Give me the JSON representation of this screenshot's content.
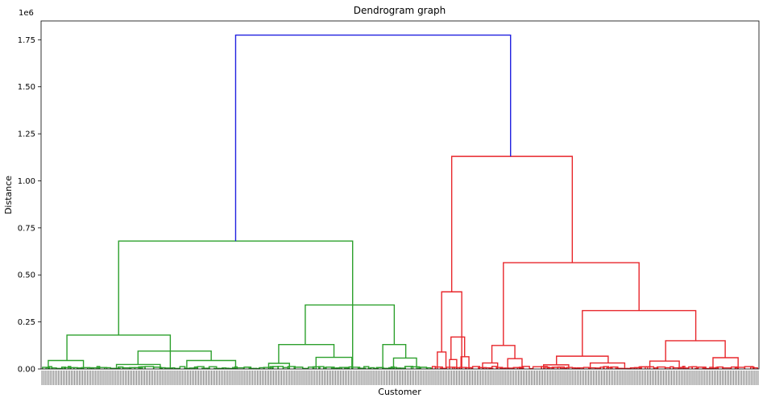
{
  "chart_data": {
    "type": "dendrogram",
    "title": "Dendrogram graph",
    "xlabel": "Customer",
    "ylabel": "Distance",
    "y_offset_text": "1e6",
    "y_scale_multiplier": 1000000,
    "ylim": [
      0,
      1.85
    ],
    "y_ticks": [
      0.0,
      0.25,
      0.5,
      0.75,
      1.0,
      1.25,
      1.5,
      1.75
    ],
    "y_tick_labels": [
      "0.00",
      "0.25",
      "0.50",
      "0.75",
      "1.00",
      "1.25",
      "1.50",
      "1.75"
    ],
    "leaf_count": 440,
    "x_range": [
      0,
      100
    ],
    "colors": {
      "cluster_green": "#2ca02c",
      "cluster_red": "#e8262b",
      "link_blue": "#1f1fe0"
    },
    "merges": [
      {
        "id": "root",
        "left": 27.1,
        "right": 65.4,
        "height": 1.775,
        "color": "blue"
      },
      {
        "id": "green-top",
        "left": 10.8,
        "right": 43.4,
        "height": 0.68,
        "color": "green"
      },
      {
        "id": "green-a",
        "left": 3.6,
        "right": 18.0,
        "height": 0.18,
        "color": "green"
      },
      {
        "id": "green-a1",
        "left": 1.0,
        "right": 5.9,
        "height": 0.045,
        "color": "green"
      },
      {
        "id": "green-a2",
        "left": 13.5,
        "right": 23.7,
        "height": 0.095,
        "color": "green"
      },
      {
        "id": "green-a2l",
        "left": 10.5,
        "right": 16.6,
        "height": 0.024,
        "color": "green"
      },
      {
        "id": "green-a2r",
        "left": 20.3,
        "right": 27.1,
        "height": 0.045,
        "color": "green"
      },
      {
        "id": "green-b",
        "left": 36.8,
        "right": 49.2,
        "height": 0.34,
        "color": "green"
      },
      {
        "id": "green-b1",
        "left": 33.1,
        "right": 40.8,
        "height": 0.13,
        "color": "green"
      },
      {
        "id": "green-b1l",
        "left": 31.7,
        "right": 34.6,
        "height": 0.03,
        "color": "green"
      },
      {
        "id": "green-b1r",
        "left": 38.3,
        "right": 43.3,
        "height": 0.062,
        "color": "green"
      },
      {
        "id": "green-b2",
        "left": 47.6,
        "right": 50.8,
        "height": 0.13,
        "color": "green"
      },
      {
        "id": "green-b2r",
        "left": 49.1,
        "right": 52.3,
        "height": 0.058,
        "color": "green"
      },
      {
        "id": "red-top",
        "left": 57.2,
        "right": 74.0,
        "height": 1.13,
        "color": "red"
      },
      {
        "id": "red-a",
        "left": 55.8,
        "right": 58.6,
        "height": 0.41,
        "color": "red"
      },
      {
        "id": "red-a1",
        "left": 55.2,
        "right": 56.4,
        "height": 0.09,
        "color": "red"
      },
      {
        "id": "red-a2",
        "left": 57.1,
        "right": 59.0,
        "height": 0.17,
        "color": "red"
      },
      {
        "id": "red-a2l",
        "left": 56.9,
        "right": 57.9,
        "height": 0.05,
        "color": "red"
      },
      {
        "id": "red-a2r",
        "left": 58.5,
        "right": 59.6,
        "height": 0.065,
        "color": "red"
      },
      {
        "id": "red-b",
        "left": 64.4,
        "right": 83.3,
        "height": 0.565,
        "color": "red"
      },
      {
        "id": "red-b1",
        "left": 62.8,
        "right": 66.0,
        "height": 0.125,
        "color": "red"
      },
      {
        "id": "red-b1l",
        "left": 61.5,
        "right": 63.6,
        "height": 0.032,
        "color": "red"
      },
      {
        "id": "red-b1r",
        "left": 65.0,
        "right": 67.0,
        "height": 0.055,
        "color": "red"
      },
      {
        "id": "red-b2",
        "left": 75.4,
        "right": 91.2,
        "height": 0.31,
        "color": "red"
      },
      {
        "id": "red-b2l",
        "left": 71.8,
        "right": 79.0,
        "height": 0.068,
        "color": "red"
      },
      {
        "id": "red-b2ll",
        "left": 70.0,
        "right": 73.5,
        "height": 0.022,
        "color": "red"
      },
      {
        "id": "red-b2lr",
        "left": 76.5,
        "right": 81.3,
        "height": 0.032,
        "color": "red"
      },
      {
        "id": "red-b2r",
        "left": 87.0,
        "right": 95.3,
        "height": 0.15,
        "color": "red"
      },
      {
        "id": "red-b2r1",
        "left": 84.8,
        "right": 88.9,
        "height": 0.042,
        "color": "red"
      },
      {
        "id": "red-b2r2",
        "left": 93.6,
        "right": 97.1,
        "height": 0.06,
        "color": "red"
      }
    ],
    "leaf_groups": [
      {
        "from": 0.2,
        "to": 54.5,
        "color": "green"
      },
      {
        "from": 54.5,
        "to": 99.8,
        "color": "red"
      }
    ]
  }
}
